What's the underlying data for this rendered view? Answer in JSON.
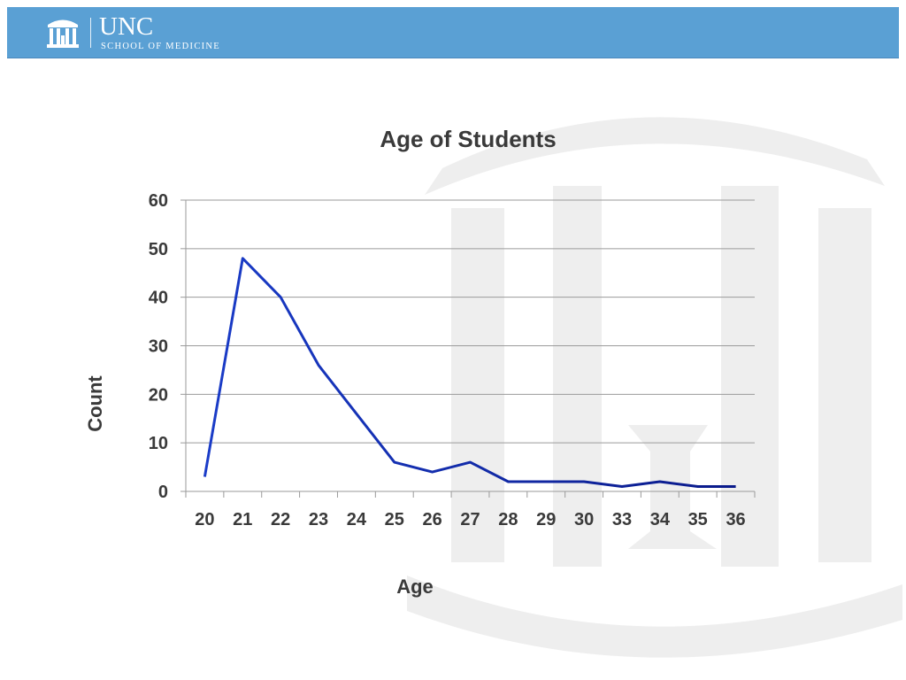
{
  "header": {
    "logo_main": "UNC",
    "logo_sub": "SCHOOL OF MEDICINE",
    "background": "#5aa0d4",
    "logo_icon": "old-well-icon"
  },
  "watermark_icon": "old-well-watermark",
  "chart_data": {
    "type": "line",
    "title": "Age of Students",
    "xlabel": "Age",
    "ylabel": "Count",
    "categories": [
      "20",
      "21",
      "22",
      "23",
      "24",
      "25",
      "26",
      "27",
      "28",
      "29",
      "30",
      "33",
      "34",
      "35",
      "36"
    ],
    "series": [
      {
        "values": [
          3,
          48,
          40,
          26,
          16,
          6,
          4,
          6,
          2,
          2,
          2,
          1,
          2,
          1,
          1
        ]
      }
    ],
    "ylim": [
      0,
      60
    ],
    "yticks": [
      0,
      10,
      20,
      30,
      40,
      50,
      60
    ],
    "grid": true,
    "legend": "none",
    "line_color_start": "#1a3cc8",
    "line_color_end": "#0a1a8a"
  }
}
